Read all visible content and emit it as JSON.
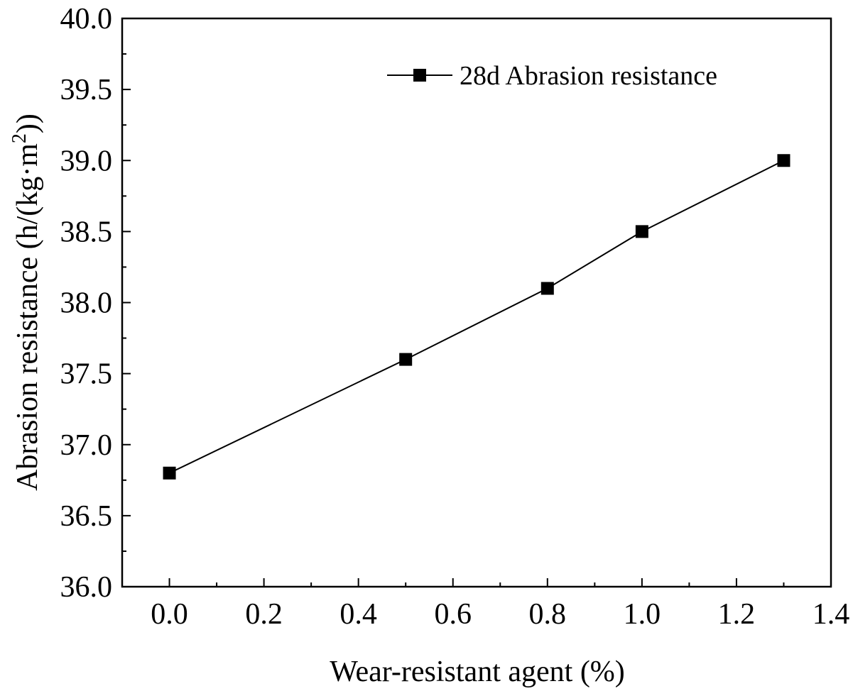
{
  "chart_data": {
    "type": "line",
    "title": "",
    "xlabel": "Wear-resistant agent (%)",
    "ylabel": {
      "prefix": "Abrasion resistance (h/(kg·m",
      "superscript": "2",
      "suffix": "))"
    },
    "xlim": [
      -0.1,
      1.4
    ],
    "ylim": [
      36.0,
      40.0
    ],
    "x_ticks": [
      "0.0",
      "0.2",
      "0.4",
      "0.6",
      "0.8",
      "1.0",
      "1.2",
      "1.4"
    ],
    "y_ticks": [
      "36.0",
      "36.5",
      "37.0",
      "37.5",
      "38.0",
      "38.5",
      "39.0",
      "39.5",
      "40.0"
    ],
    "grid": false,
    "legend_position": "top-right",
    "series": [
      {
        "name": "28d Abrasion resistance",
        "marker": "square",
        "color": "#000000",
        "x": [
          0.0,
          0.5,
          0.8,
          1.0,
          1.3
        ],
        "y": [
          36.8,
          37.6,
          38.1,
          38.5,
          39.0
        ]
      }
    ]
  }
}
